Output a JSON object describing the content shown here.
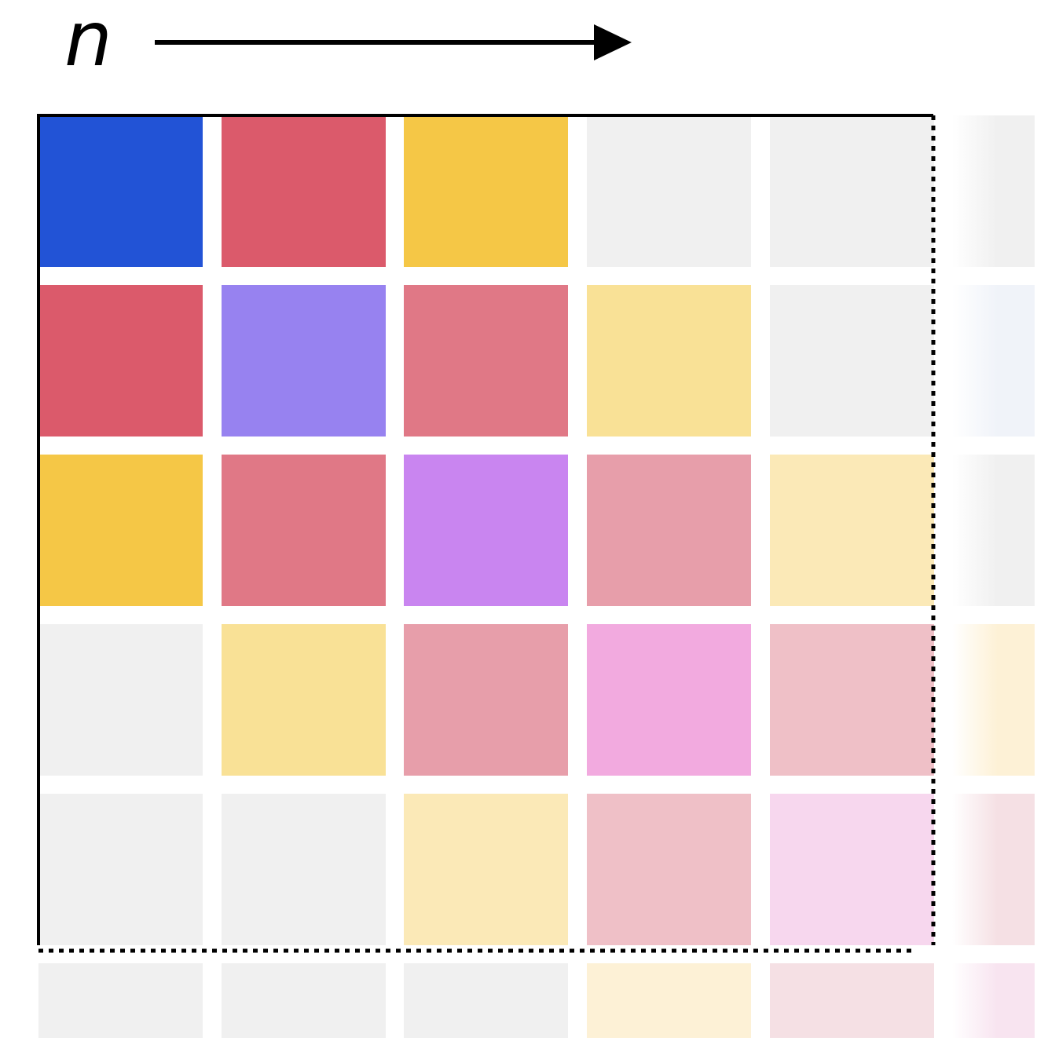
{
  "label": "n",
  "grid": {
    "rows": [
      [
        "#2253d6",
        "#db5a6b",
        "#f5c746",
        "#f0f0f0",
        "#f0f0f0",
        "#f0f0f0"
      ],
      [
        "#db5a6b",
        "#9782f0",
        "#e07886",
        "#f9e196",
        "#f0f0f0",
        "#f0f3f9"
      ],
      [
        "#f5c746",
        "#e07886",
        "#c985f0",
        "#e79eaa",
        "#fbe9b7",
        "#f0f0f0"
      ],
      [
        "#f0f0f0",
        "#f9e196",
        "#e79eaa",
        "#f2aadf",
        "#efc0c7",
        "#fdf1d6"
      ],
      [
        "#f0f0f0",
        "#f0f0f0",
        "#fbe9b7",
        "#efc0c7",
        "#f7d7ee",
        "#f5e0e4"
      ],
      [
        "#f0f0f0",
        "#f0f0f0",
        "#f0f0f0",
        "#fdf1d6",
        "#f5e0e4",
        "#f8e4f0"
      ]
    ]
  }
}
